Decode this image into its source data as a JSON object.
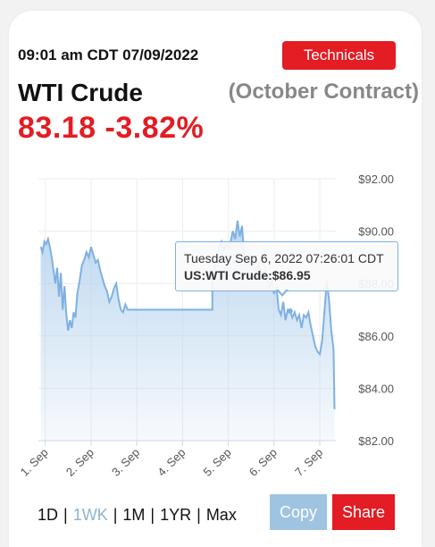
{
  "header": {
    "timestamp": "09:01 am CDT 07/09/2022",
    "technicals_label": "Technicals",
    "title": "WTI Crude",
    "contract": "(October Contract)",
    "price_change": "83.18 -3.82%"
  },
  "tooltip": {
    "datetime": "Tuesday Sep 6, 2022 07:26:01 CDT",
    "series_label": "US:WTI Crude:",
    "value": "$86.95"
  },
  "range_buttons": [
    {
      "label": "1D",
      "active": false
    },
    {
      "label": "1WK",
      "active": true
    },
    {
      "label": "1M",
      "active": false
    },
    {
      "label": "1YR",
      "active": false
    },
    {
      "label": "Max",
      "active": false
    }
  ],
  "actions": {
    "copy_label": "Copy",
    "share_label": "Share"
  },
  "colors": {
    "accent": "#e41c23",
    "line": "#7fb0e3",
    "area_top": "#b9d5ee",
    "copy": "#9ec4e1"
  },
  "chart_data": {
    "type": "area",
    "ylim": [
      82,
      92
    ],
    "yticks": [
      "$92.00",
      "$90.00",
      "$88.00",
      "$86.00",
      "$84.00",
      "$82.00"
    ],
    "ytick_values": [
      92,
      90,
      88,
      86,
      84,
      82
    ],
    "xlim": [
      0.85,
      7.35
    ],
    "xticks": [
      "1. Sep",
      "2. Sep",
      "3. Sep",
      "4. Sep",
      "5. Sep",
      "6. Sep",
      "7. Sep"
    ],
    "xtick_values": [
      1,
      2,
      3,
      4,
      5,
      6,
      7
    ],
    "grid": true,
    "points": [
      [
        0.9,
        89.4
      ],
      [
        0.94,
        89.2
      ],
      [
        0.98,
        89.6
      ],
      [
        1.02,
        89.5
      ],
      [
        1.06,
        89.7
      ],
      [
        1.1,
        89.4
      ],
      [
        1.14,
        89.0
      ],
      [
        1.18,
        88.5
      ],
      [
        1.22,
        88.0
      ],
      [
        1.26,
        88.6
      ],
      [
        1.3,
        87.5
      ],
      [
        1.34,
        88.4
      ],
      [
        1.38,
        87.0
      ],
      [
        1.42,
        87.9
      ],
      [
        1.46,
        86.8
      ],
      [
        1.5,
        86.2
      ],
      [
        1.54,
        86.6
      ],
      [
        1.58,
        86.3
      ],
      [
        1.62,
        86.9
      ],
      [
        1.66,
        86.7
      ],
      [
        1.7,
        87.6
      ],
      [
        1.75,
        88.1
      ],
      [
        1.8,
        88.7
      ],
      [
        1.85,
        88.9
      ],
      [
        1.9,
        89.2
      ],
      [
        1.95,
        89.0
      ],
      [
        2.0,
        89.4
      ],
      [
        2.05,
        89.1
      ],
      [
        2.1,
        88.8
      ],
      [
        2.15,
        88.9
      ],
      [
        2.2,
        88.5
      ],
      [
        2.25,
        88.2
      ],
      [
        2.3,
        87.9
      ],
      [
        2.35,
        87.7
      ],
      [
        2.4,
        87.3
      ],
      [
        2.45,
        87.5
      ],
      [
        2.5,
        87.8
      ],
      [
        2.55,
        88.0
      ],
      [
        2.6,
        87.4
      ],
      [
        2.65,
        87.0
      ],
      [
        2.7,
        86.9
      ],
      [
        2.75,
        87.2
      ],
      [
        2.8,
        87.0
      ],
      [
        4.65,
        87.0
      ],
      [
        4.65,
        88.3
      ],
      [
        4.7,
        88.7
      ],
      [
        4.75,
        89.0
      ],
      [
        4.8,
        89.4
      ],
      [
        4.85,
        89.6
      ],
      [
        4.9,
        89.3
      ],
      [
        4.95,
        89.5
      ],
      [
        5.0,
        89.4
      ],
      [
        5.05,
        89.6
      ],
      [
        5.1,
        90.0
      ],
      [
        5.15,
        89.7
      ],
      [
        5.2,
        90.4
      ],
      [
        5.25,
        89.8
      ],
      [
        5.3,
        90.2
      ],
      [
        5.35,
        89.0
      ],
      [
        5.4,
        88.8
      ],
      [
        5.45,
        89.1
      ],
      [
        5.5,
        88.6
      ],
      [
        5.55,
        88.9
      ],
      [
        5.6,
        88.4
      ],
      [
        5.65,
        88.7
      ],
      [
        5.7,
        88.5
      ],
      [
        5.75,
        88.2
      ],
      [
        5.8,
        88.6
      ],
      [
        5.85,
        88.3
      ],
      [
        5.9,
        87.9
      ],
      [
        5.95,
        88.1
      ],
      [
        6.0,
        87.6
      ],
      [
        6.05,
        87.9
      ],
      [
        6.1,
        87.0
      ],
      [
        6.15,
        86.8
      ],
      [
        6.2,
        87.3
      ],
      [
        6.25,
        86.6
      ],
      [
        6.3,
        87.0
      ],
      [
        6.35,
        86.95
      ],
      [
        6.4,
        86.7
      ],
      [
        6.45,
        86.9
      ],
      [
        6.5,
        86.6
      ],
      [
        6.55,
        86.8
      ],
      [
        6.6,
        86.3
      ],
      [
        6.65,
        86.8
      ],
      [
        6.7,
        86.7
      ],
      [
        6.75,
        86.9
      ],
      [
        6.8,
        86.4
      ],
      [
        6.85,
        86.0
      ],
      [
        6.9,
        85.6
      ],
      [
        6.95,
        85.4
      ],
      [
        7.0,
        85.3
      ],
      [
        7.05,
        85.8
      ],
      [
        7.1,
        86.9
      ],
      [
        7.15,
        88.1
      ],
      [
        7.2,
        87.4
      ],
      [
        7.25,
        86.2
      ],
      [
        7.3,
        85.5
      ],
      [
        7.32,
        83.2
      ]
    ]
  }
}
